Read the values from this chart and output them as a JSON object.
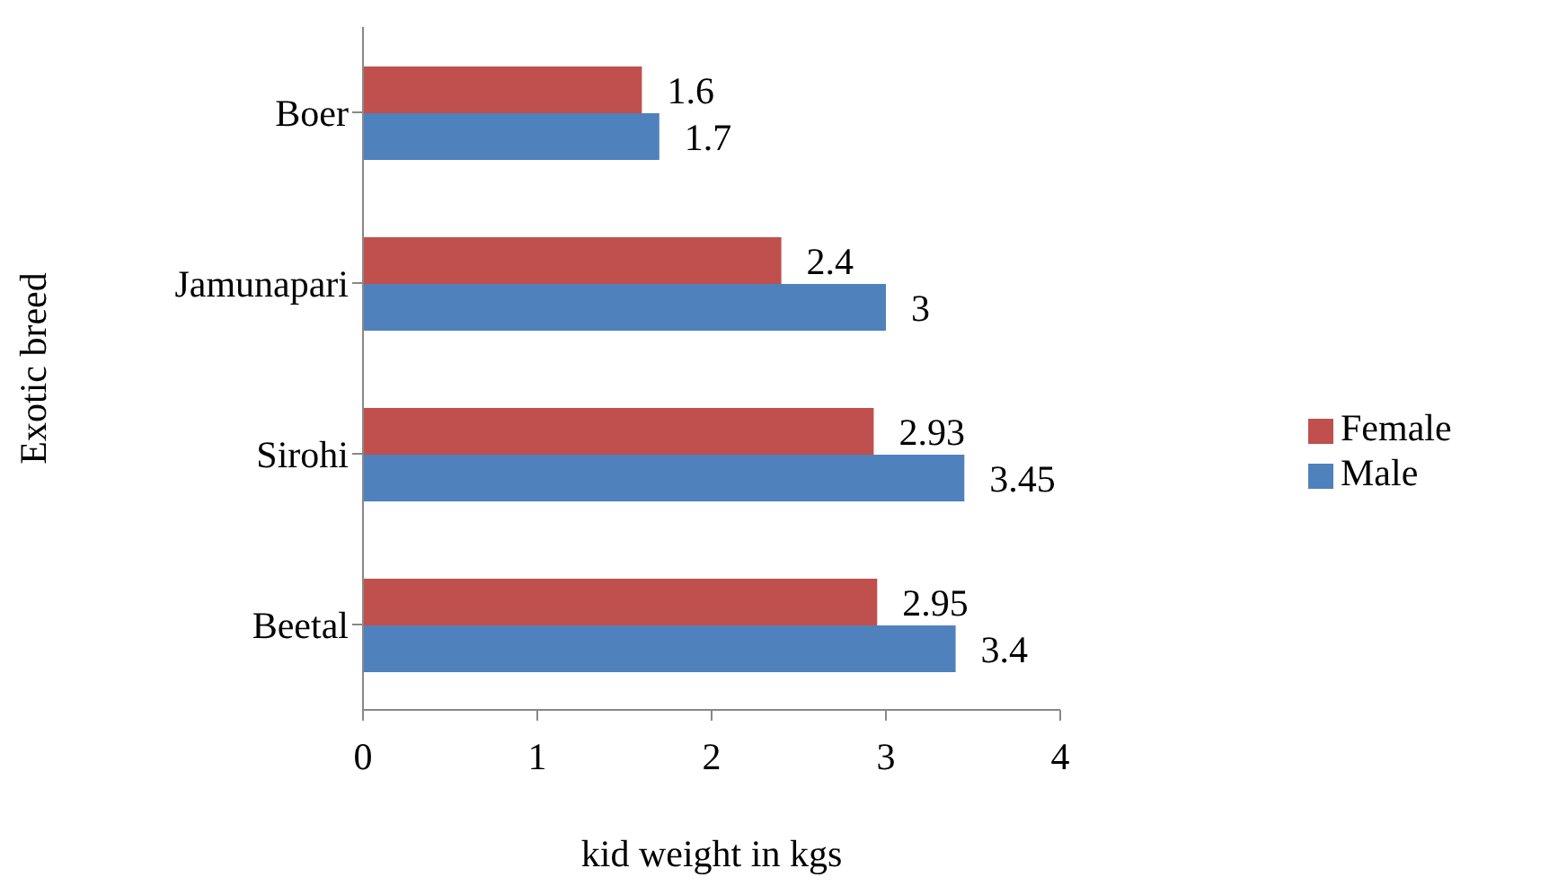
{
  "chart_data": {
    "type": "bar",
    "orientation": "horizontal",
    "xlabel": "kid weight in kgs",
    "ylabel": "Exotic breed",
    "categories": [
      "Boer",
      "Jamunapari",
      "Sirohi",
      "Beetal"
    ],
    "series": [
      {
        "name": "Female",
        "color": "#c0504d",
        "values": [
          1.6,
          2.4,
          2.93,
          2.95
        ]
      },
      {
        "name": "Male",
        "color": "#4f81bd",
        "values": [
          1.7,
          3,
          3.45,
          3.4
        ]
      }
    ],
    "xlim": [
      0,
      4
    ],
    "xticks": [
      0,
      1,
      2,
      3,
      4
    ],
    "data_labels": true,
    "legend": "right"
  }
}
